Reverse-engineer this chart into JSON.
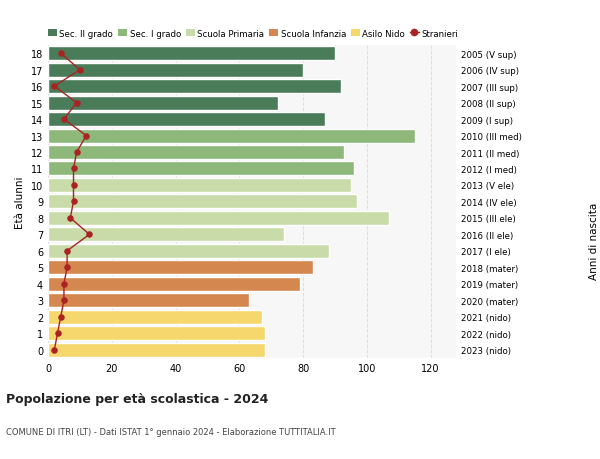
{
  "ages": [
    0,
    1,
    2,
    3,
    4,
    5,
    6,
    7,
    8,
    9,
    10,
    11,
    12,
    13,
    14,
    15,
    16,
    17,
    18
  ],
  "bar_values": [
    68,
    68,
    67,
    63,
    79,
    83,
    88,
    74,
    107,
    97,
    95,
    96,
    93,
    115,
    87,
    72,
    92,
    80,
    90
  ],
  "stranieri": [
    2,
    3,
    4,
    5,
    5,
    6,
    6,
    13,
    7,
    8,
    8,
    8,
    9,
    12,
    5,
    9,
    2,
    10,
    4
  ],
  "right_labels": [
    "2023 (nido)",
    "2022 (nido)",
    "2021 (nido)",
    "2020 (mater)",
    "2019 (mater)",
    "2018 (mater)",
    "2017 (I ele)",
    "2016 (II ele)",
    "2015 (III ele)",
    "2014 (IV ele)",
    "2013 (V ele)",
    "2012 (I med)",
    "2011 (II med)",
    "2010 (III med)",
    "2009 (I sup)",
    "2008 (II sup)",
    "2007 (III sup)",
    "2006 (IV sup)",
    "2005 (V sup)"
  ],
  "bar_colors": [
    "#f5d76e",
    "#f5d76e",
    "#f5d76e",
    "#d4874e",
    "#d4874e",
    "#d4874e",
    "#c8dba8",
    "#c8dba8",
    "#c8dba8",
    "#c8dba8",
    "#c8dba8",
    "#8db87a",
    "#8db87a",
    "#8db87a",
    "#4a7c59",
    "#4a7c59",
    "#4a7c59",
    "#4a7c59",
    "#4a7c59"
  ],
  "legend_labels": [
    "Sec. II grado",
    "Sec. I grado",
    "Scuola Primaria",
    "Scuola Infanzia",
    "Asilo Nido",
    "Stranieri"
  ],
  "legend_colors": [
    "#4a7c59",
    "#8db87a",
    "#c8dba8",
    "#d4874e",
    "#f5d76e",
    "#aa2222"
  ],
  "right_axis_label": "Anni di nascita",
  "ylabel_left": "Età alunni",
  "title": "Popolazione per età scolastica - 2024",
  "subtitle": "COMUNE DI ITRI (LT) - Dati ISTAT 1° gennaio 2024 - Elaborazione TUTTITALIA.IT",
  "stranieri_color": "#aa2222",
  "bg_color": "#ffffff",
  "plot_bg_color": "#f7f7f7",
  "bar_edgecolor": "#ffffff",
  "grid_color": "#dddddd"
}
